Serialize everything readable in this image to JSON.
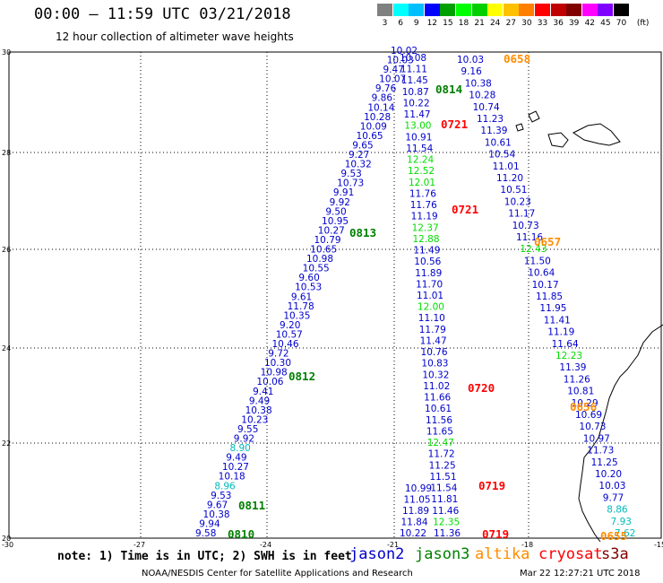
{
  "header": {
    "title": "00:00 – 11:59 UTC 03/21/2018",
    "subtitle": "12 hour collection of altimeter wave heights"
  },
  "scale": {
    "unit": "(ft)",
    "bins": [
      {
        "label": "3",
        "color": "#808080"
      },
      {
        "label": "6",
        "color": "#00ffff"
      },
      {
        "label": "9",
        "color": "#00bfff"
      },
      {
        "label": "12",
        "color": "#0000ff"
      },
      {
        "label": "15",
        "color": "#00a000"
      },
      {
        "label": "18",
        "color": "#00ff00"
      },
      {
        "label": "21",
        "color": "#00d000"
      },
      {
        "label": "24",
        "color": "#ffff00"
      },
      {
        "label": "27",
        "color": "#ffc000"
      },
      {
        "label": "30",
        "color": "#ff8000"
      },
      {
        "label": "33",
        "color": "#ff0000"
      },
      {
        "label": "36",
        "color": "#c00000"
      },
      {
        "label": "39",
        "color": "#800000"
      },
      {
        "label": "42",
        "color": "#ff00ff"
      },
      {
        "label": "45",
        "color": "#8000ff"
      },
      {
        "label": "70",
        "color": "#000000"
      }
    ]
  },
  "axes": {
    "lat": [
      "30",
      "28",
      "26",
      "24",
      "22",
      "20"
    ],
    "lon": [
      "-30",
      "-27",
      "-24",
      "-21",
      "-18",
      "-15"
    ]
  },
  "satellite_colors": {
    "jason2": "#0000cc",
    "jason3": "#008000",
    "altika": "#ff8c00",
    "cryosat": "#ff0000",
    "s3a": "#800000",
    "light": "#00dd00",
    "cyan": "#00bbbb"
  },
  "tracks": [
    {
      "sat": "jason2",
      "labels": [
        "10.02",
        "10.03",
        "9.47",
        "10.07",
        "9.76",
        "9.86",
        "10.14",
        "10.28",
        "10.09",
        "10.65",
        "9.65",
        "9.27",
        "10.32",
        "9.53",
        "10.73",
        "9.91",
        "9.92",
        "9.50",
        "10.95",
        "10.27",
        "10.79",
        "10.65",
        "10.98",
        "10.55",
        "9.60",
        "10.53",
        "9.61",
        "11.78",
        "10.35",
        "9.20",
        "10.57",
        "10.46",
        "9.72",
        "10.30",
        "10.98",
        "10.06",
        "9.41",
        "9.49",
        "10.38",
        "10.23",
        "9.55",
        "9.92",
        "8.90",
        "9.49",
        "10.27",
        "10.18",
        "8.96",
        "9.53",
        "9.67",
        "10.38",
        "9.94",
        "9.58"
      ]
    },
    {
      "sat": "jason3",
      "labels": [
        "10.08",
        "11.11",
        "11.45",
        "10.87",
        "10.22",
        "11.47",
        "13.00",
        "10.91",
        "11.54",
        "12.24",
        "12.52",
        "12.01",
        "11.76",
        "11.76",
        "11.19",
        "12.37",
        "12.88",
        "11.49",
        "10.56",
        "11.89",
        "11.70",
        "11.01",
        "12.00",
        "11.10",
        "11.79",
        "11.47",
        "10.76",
        "10.83",
        "10.32",
        "11.02",
        "11.66",
        "10.61",
        "11.56",
        "11.65",
        "12.47",
        "11.72",
        "11.25",
        "11.51",
        "11.54",
        "11.81",
        "11.46",
        "12.35",
        "11.36"
      ]
    },
    {
      "sat": "jason2b",
      "labels": [
        "10.99",
        "11.05",
        "11.89",
        "11.84",
        "10.22"
      ]
    },
    {
      "sat": "altika",
      "labels": [
        "10.03",
        "9.16",
        "10.38",
        "10.28",
        "10.74",
        "11.23",
        "11.39",
        "10.61",
        "10.54",
        "11.01",
        "11.20",
        "10.51",
        "10.23",
        "11.17",
        "10.73",
        "11.16",
        "12.43",
        "11.50",
        "10.64",
        "10.17",
        "11.85",
        "11.95",
        "11.41",
        "11.19",
        "11.64",
        "12.23",
        "11.39",
        "11.26",
        "10.81",
        "10.29",
        "10.69",
        "10.73",
        "10.97",
        "11.73",
        "11.25",
        "10.20",
        "10.03",
        "9.77",
        "8.86",
        "7.93",
        "7.62"
      ]
    }
  ],
  "times": [
    {
      "label": "0658",
      "sat": "altika"
    },
    {
      "label": "0814",
      "sat": "jason3"
    },
    {
      "label": "0721",
      "sat": "cryosat"
    },
    {
      "label": "0721",
      "sat": "cryosat"
    },
    {
      "label": "0813",
      "sat": "jason3"
    },
    {
      "label": "0657",
      "sat": "altika"
    },
    {
      "label": "0812",
      "sat": "jason3"
    },
    {
      "label": "0720",
      "sat": "cryosat"
    },
    {
      "label": "0656",
      "sat": "altika"
    },
    {
      "label": "0719",
      "sat": "cryosat"
    },
    {
      "label": "0811",
      "sat": "jason3"
    },
    {
      "label": "0719",
      "sat": "cryosat"
    },
    {
      "label": "0810",
      "sat": "jason3"
    },
    {
      "label": "0655",
      "sat": "altika"
    }
  ],
  "footer": {
    "note": "note: 1) Time is in UTC; 2) SWH is in feet",
    "legend": [
      {
        "label": "jason2",
        "sat": "jason2"
      },
      {
        "label": "jason3",
        "sat": "jason3"
      },
      {
        "label": "altika",
        "sat": "altika"
      },
      {
        "label": "cryosat",
        "sat": "cryosat"
      },
      {
        "label": "s3a",
        "sat": "s3a"
      }
    ],
    "center": "NOAA/NESDIS Center for Satellite Applications and Research",
    "stamp": "Mar 22 12:27:21 UTC 2018"
  }
}
